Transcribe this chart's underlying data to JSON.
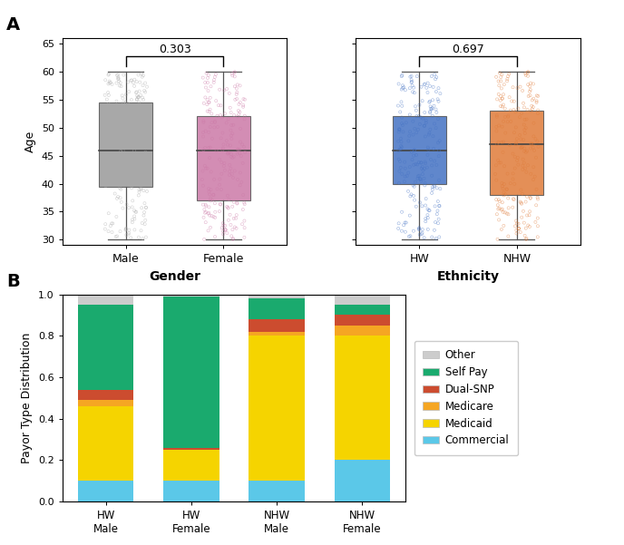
{
  "panel_A_label": "A",
  "panel_B_label": "B",
  "gender_box": {
    "Male": {
      "q1": 39.5,
      "median": 46.0,
      "q3": 54.5,
      "whisker_low": 30.0,
      "whisker_high": 60.0,
      "color": "#999999",
      "jitter_color": "#aaaaaa"
    },
    "Female": {
      "q1": 37.0,
      "median": 46.0,
      "q3": 52.0,
      "whisker_low": 30.0,
      "whisker_high": 60.0,
      "color": "#cc79a7",
      "jitter_color": "#cc79a7"
    }
  },
  "gender_pval": "0.303",
  "gender_xlabel": "Gender",
  "gender_ylabel": "Age",
  "gender_ylim": [
    29,
    66
  ],
  "gender_yticks": [
    30,
    35,
    40,
    45,
    50,
    55,
    60,
    65
  ],
  "gender_categories": [
    "Male",
    "Female"
  ],
  "ethnicity_box": {
    "HW": {
      "q1": 40.0,
      "median": 46.0,
      "q3": 52.0,
      "whisker_low": 30.0,
      "whisker_high": 60.0,
      "color": "#4472c4",
      "jitter_color": "#4472c4"
    },
    "NHW": {
      "q1": 38.0,
      "median": 47.0,
      "q3": 53.0,
      "whisker_low": 30.0,
      "whisker_high": 60.0,
      "color": "#e07b39",
      "jitter_color": "#e07b39"
    }
  },
  "ethnicity_pval": "0.697",
  "ethnicity_xlabel": "Ethnicity",
  "ethnicity_ylim": [
    29,
    66
  ],
  "ethnicity_yticks": [
    30,
    35,
    40,
    45,
    50,
    55,
    60,
    65
  ],
  "ethnicity_categories": [
    "HW",
    "NHW"
  ],
  "bar_categories": [
    "HW\nMale",
    "HW\nFemale",
    "NHW\nMale",
    "NHW\nFemale"
  ],
  "bar_ylabel": "Payor Type Distribution",
  "bar_ylim": [
    0.0,
    1.0
  ],
  "bar_yticks": [
    0.0,
    0.2,
    0.4,
    0.6,
    0.8,
    1.0
  ],
  "bar_data": {
    "Commercial": [
      0.1,
      0.1,
      0.1,
      0.2
    ],
    "Medicaid": [
      0.36,
      0.15,
      0.7,
      0.6
    ],
    "Medicare": [
      0.03,
      0.0,
      0.02,
      0.05
    ],
    "Dual-SNP": [
      0.05,
      0.01,
      0.06,
      0.05
    ],
    "Self Pay": [
      0.41,
      0.73,
      0.1,
      0.05
    ],
    "Other": [
      0.05,
      0.01,
      0.02,
      0.05
    ]
  },
  "bar_colors": {
    "Commercial": "#5bc8e8",
    "Medicaid": "#f5d400",
    "Medicare": "#f5a623",
    "Dual-SNP": "#cc4c2f",
    "Self Pay": "#1aaa6e",
    "Other": "#cccccc"
  },
  "legend_order": [
    "Other",
    "Self Pay",
    "Dual-SNP",
    "Medicare",
    "Medicaid",
    "Commercial"
  ],
  "background_color": "#ffffff",
  "fig_width": 6.88,
  "fig_height": 6.01,
  "dpi": 100
}
